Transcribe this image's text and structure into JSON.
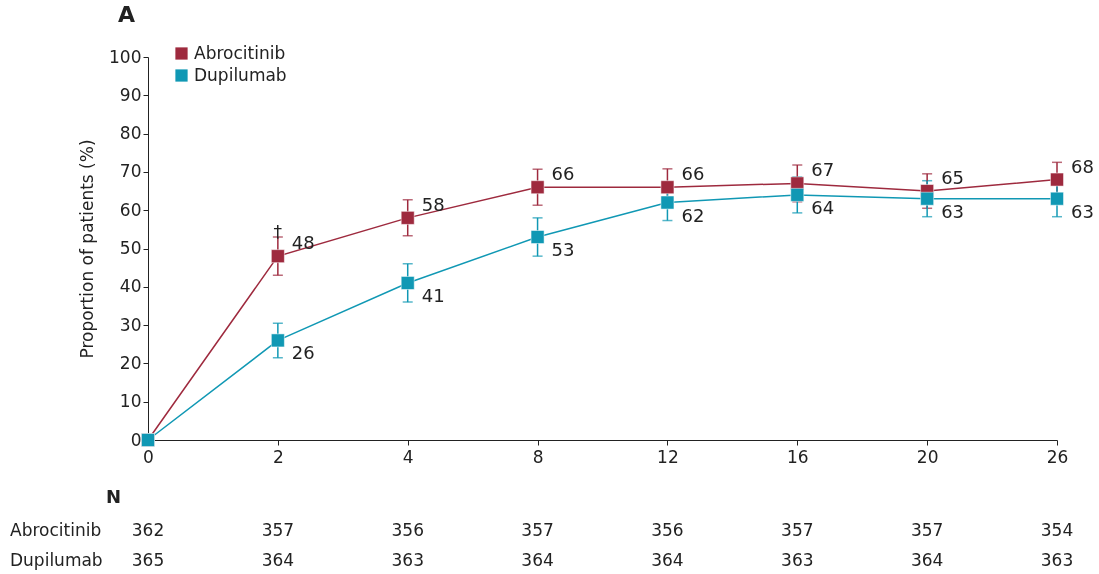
{
  "chart_data": {
    "type": "line",
    "title": "A",
    "ylabel": "Proportion of patients (%)",
    "categories": [
      "0",
      "2",
      "4",
      "8",
      "12",
      "16",
      "20",
      "26"
    ],
    "series": [
      {
        "name": "Abrocitinib",
        "color": "#9e2a3e",
        "values": [
          0,
          48,
          58,
          66,
          66,
          67,
          65,
          68
        ],
        "errors": [
          null,
          5,
          4.7,
          4.7,
          4.8,
          4.8,
          4.5,
          4.5
        ],
        "value_labels": [
          null,
          "48",
          "58",
          "66",
          "66",
          "67",
          "65",
          "68"
        ]
      },
      {
        "name": "Dupilumab",
        "color": "#1098b4",
        "values": [
          0,
          26,
          41,
          53,
          62,
          64,
          63,
          63
        ],
        "errors": [
          null,
          4.5,
          5,
          5,
          4.7,
          4.7,
          4.7,
          4.7
        ],
        "value_labels": [
          null,
          "26",
          "41",
          "53",
          "62",
          "64",
          "63",
          "63"
        ]
      }
    ],
    "ylim": [
      0,
      100
    ],
    "yticks": [
      0,
      10,
      20,
      30,
      40,
      50,
      60,
      70,
      80,
      90,
      100
    ],
    "grid": false,
    "legend": "top left",
    "marker": "square",
    "line_style": "solid",
    "annotations": [
      {
        "text": "†",
        "x": "2",
        "y": 54
      },
      "N",
      "Abrocitinib",
      "362",
      "357",
      "356",
      "357",
      "356",
      "357",
      "357",
      "354",
      "Dupilumab",
      "365",
      "364",
      "363",
      "364",
      "364",
      "363",
      "364",
      "363"
    ]
  }
}
